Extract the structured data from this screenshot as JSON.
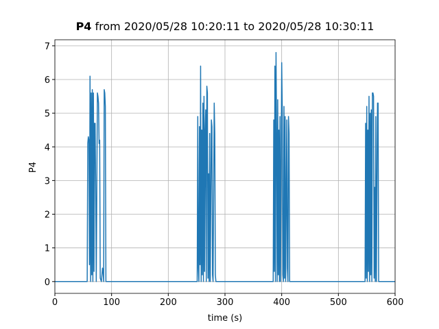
{
  "chart_data": {
    "type": "line",
    "title_parts": [
      "P4",
      "from 2020/05/28 10:20:11 to 2020/05/28 10:30:11"
    ],
    "xlabel": "time (s)",
    "ylabel": "P4",
    "xlim": [
      0,
      600
    ],
    "ylim": [
      -0.35,
      7.18
    ],
    "xticks": [
      0,
      100,
      200,
      300,
      400,
      500,
      600
    ],
    "yticks": [
      0,
      1,
      2,
      3,
      4,
      5,
      6,
      7
    ],
    "grid": true,
    "series": [
      {
        "color": "#1f77b4",
        "x": [
          0,
          57,
          58,
          59,
          60,
          61,
          62,
          63,
          64,
          65,
          66,
          67,
          68,
          69,
          70,
          71,
          72,
          73,
          75,
          76,
          77,
          78,
          79,
          80,
          82,
          84,
          85,
          86,
          87,
          88,
          89,
          90,
          251,
          252,
          253,
          254,
          255,
          256,
          257,
          258,
          259,
          260,
          261,
          262,
          263,
          264,
          265,
          266,
          267,
          268,
          269,
          270,
          271,
          272,
          273,
          274,
          276,
          277,
          278,
          279,
          281,
          282,
          283,
          284,
          385,
          386,
          387,
          388,
          389,
          390,
          391,
          392,
          393,
          394,
          395,
          396,
          397,
          398,
          400,
          401,
          402,
          403,
          404,
          405,
          406,
          407,
          409,
          410,
          411,
          412,
          413,
          414,
          547,
          548,
          549,
          550,
          551,
          552,
          553,
          554,
          555,
          556,
          557,
          558,
          559,
          560,
          561,
          562,
          563,
          564,
          565,
          566,
          567,
          569,
          570,
          571,
          600
        ],
        "values": [
          0,
          0,
          4.1,
          4.3,
          4.2,
          0.5,
          6.1,
          0,
          5.6,
          0.2,
          5.7,
          0,
          5.6,
          0.3,
          4.7,
          4.7,
          2.6,
          0,
          5.6,
          5.5,
          5.3,
          4.1,
          4.2,
          0.1,
          0,
          0.4,
          0.3,
          0,
          5.7,
          5.6,
          5.2,
          0,
          0,
          4.9,
          0.4,
          0,
          4.6,
          0.5,
          6.4,
          0,
          4.5,
          0.2,
          5.3,
          0,
          5.5,
          0.3,
          4.5,
          5.1,
          0,
          5.8,
          5.6,
          0.1,
          3.2,
          0,
          4.4,
          0,
          4.8,
          4.6,
          0.2,
          0,
          5.3,
          4.4,
          0.2,
          0,
          0,
          4.8,
          0.3,
          6.4,
          0,
          6.8,
          4.4,
          0,
          5.4,
          0.2,
          4.5,
          0,
          4.9,
          0,
          6.5,
          5.1,
          0.2,
          0,
          5.2,
          0.1,
          4.9,
          0,
          4.8,
          0.4,
          0,
          4.9,
          4.4,
          0,
          0,
          4.7,
          0.1,
          5.2,
          0,
          4.5,
          0.3,
          5.5,
          0,
          5.0,
          0.2,
          5.1,
          0,
          5.6,
          5.6,
          5.5,
          0.1,
          2.8,
          0,
          4.9,
          0,
          5.3,
          5.3,
          0,
          0
        ]
      }
    ]
  }
}
